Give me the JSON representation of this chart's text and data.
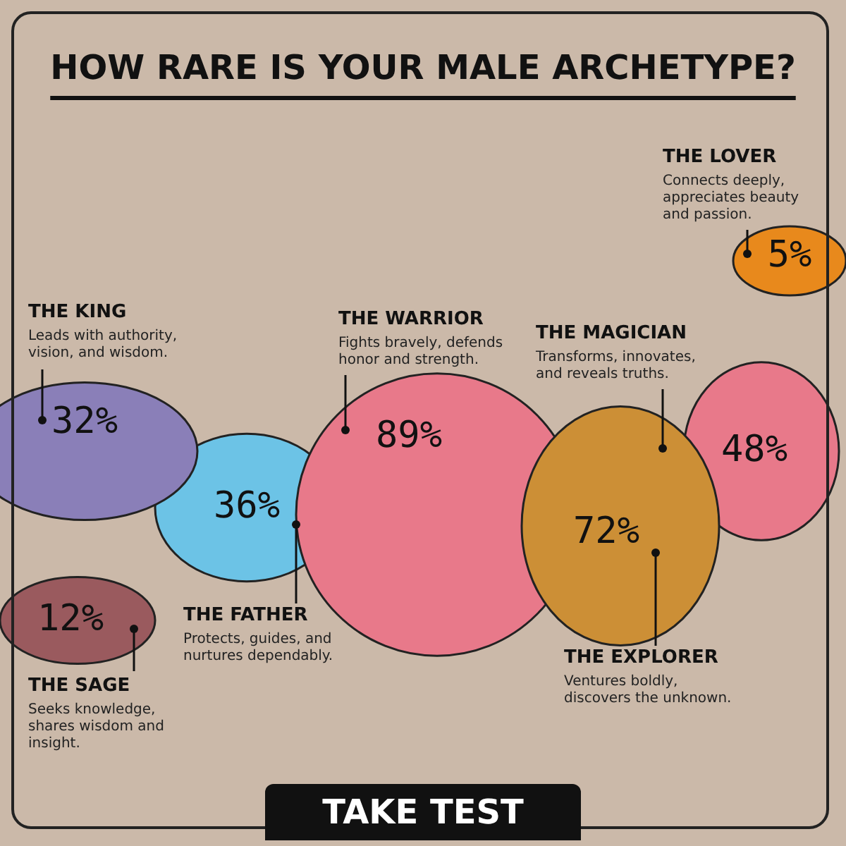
{
  "chart_data": {
    "type": "other",
    "title": "HOW RARE IS YOUR MALE ARCHETYPE?",
    "categories": [
      "THE KING",
      "THE SAGE",
      "THE FATHER",
      "THE WARRIOR",
      "THE EXPLORER",
      "THE MAGICIAN",
      "THE LOVER"
    ],
    "values": [
      32,
      12,
      36,
      89,
      72,
      48,
      5
    ],
    "value_labels": [
      "32%",
      "12%",
      "36%",
      "89%",
      "72%",
      "48%",
      "5%"
    ],
    "colors": [
      "#8a7fb8",
      "#9a5a5e",
      "#6cc3e6",
      "#e8798a",
      "#cc8f36",
      "#e8798a",
      "#e8891c"
    ],
    "annotations": [
      "Leads with authority, vision, and wisdom.",
      "Seeks knowledge, shares wisdom and insight.",
      "Protects, guides, and nurtures dependably.",
      "Fights bravely, defends honor and strength.",
      "Ventures boldly, discovers the unknown.",
      "Transforms, innovates, and reveals truths.",
      "Connects deeply, appreciates beauty and passion.",
      "TAKE TEST"
    ]
  }
}
